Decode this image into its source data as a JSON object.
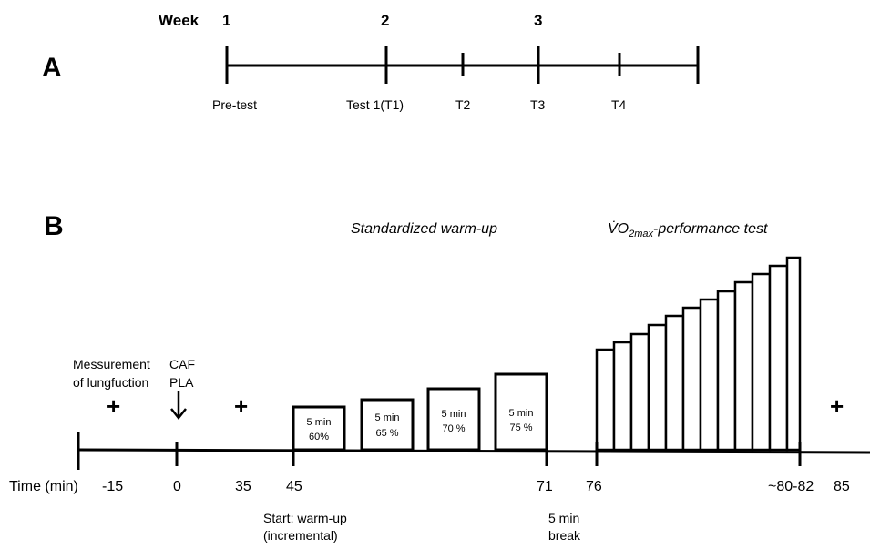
{
  "panel_a": {
    "panel_label": "A",
    "week_label": "Week",
    "weeks": [
      "1",
      "2",
      "3"
    ],
    "timepoints": [
      "Pre-test",
      "Test 1(T1)",
      "T2",
      "T3",
      "T4"
    ]
  },
  "panel_b": {
    "panel_label": "B",
    "warmup_title": "Standardized warm-up",
    "vo2_title_main": "V̇O",
    "vo2_title_sub": "2max",
    "vo2_title_tail": "-performance test",
    "lung_line1": "Messurement",
    "lung_line2": "of lungfuction",
    "caf_label": "CAF",
    "pla_label": "PLA",
    "plus_sign": "+",
    "warmup_boxes": [
      {
        "duration": "5 min",
        "intensity": "60%"
      },
      {
        "duration": "5 min",
        "intensity": "65 %"
      },
      {
        "duration": "5 min",
        "intensity": "70 %"
      },
      {
        "duration": "5 min",
        "intensity": "75 %"
      }
    ],
    "time_axis_label": "Time (min)",
    "time_ticks": [
      "-15",
      "0",
      "35",
      "45",
      "71",
      "76",
      "~80-82",
      "85"
    ],
    "warmup_start_line1": "Start: warm-up",
    "warmup_start_line2": "(incremental)",
    "break_line1": "5 min",
    "break_line2": "break"
  }
}
